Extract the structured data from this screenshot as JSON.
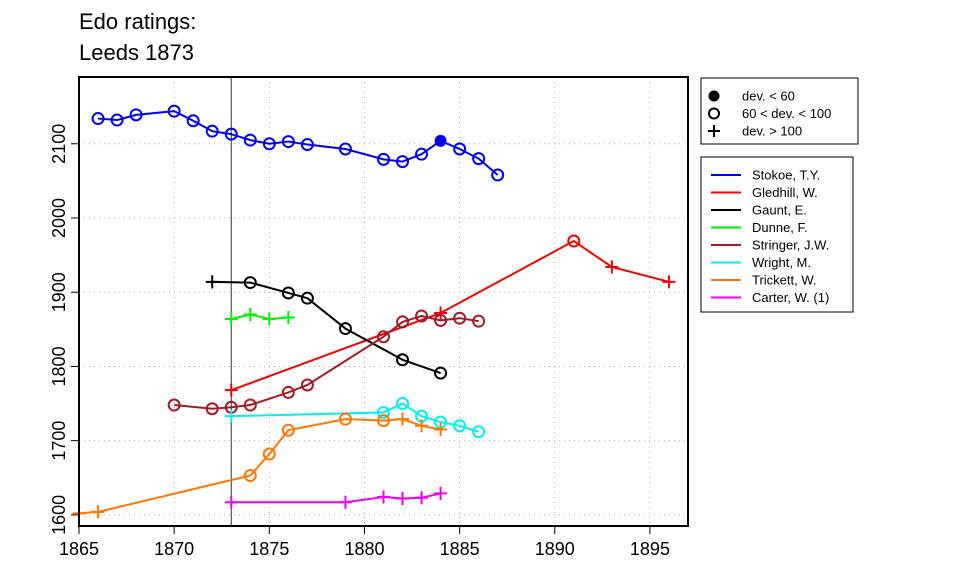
{
  "chart_data": {
    "type": "line",
    "title_lines": [
      "Edo ratings:",
      "Leeds 1873"
    ],
    "xlabel": "",
    "ylabel": "",
    "xlim": [
      1865,
      1897
    ],
    "ylim": [
      1585,
      2190
    ],
    "x_ticks": [
      1865,
      1870,
      1875,
      1880,
      1885,
      1890,
      1895
    ],
    "y_ticks": [
      1600,
      1700,
      1800,
      1900,
      2000,
      2100
    ],
    "grid": true,
    "reference_line_x": 1873,
    "marker_legend": [
      {
        "marker": "filled",
        "label": "dev. < 60"
      },
      {
        "marker": "open",
        "label": "60 < dev. < 100"
      },
      {
        "marker": "plus",
        "label": "dev. > 100"
      }
    ],
    "legend_position": "right",
    "series": [
      {
        "name": "Stokoe, T.Y.",
        "color": "#0000ee",
        "points": [
          [
            1866,
            2134,
            "open"
          ],
          [
            1867,
            2132,
            "open"
          ],
          [
            1868,
            2139,
            "open"
          ],
          [
            1870,
            2144,
            "open"
          ],
          [
            1871,
            2131,
            "open"
          ],
          [
            1872,
            2117,
            "open"
          ],
          [
            1873,
            2113,
            "open"
          ],
          [
            1874,
            2105,
            "open"
          ],
          [
            1875,
            2100,
            "open"
          ],
          [
            1876,
            2103,
            "open"
          ],
          [
            1877,
            2099,
            "open"
          ],
          [
            1879,
            2093,
            "open"
          ],
          [
            1881,
            2079,
            "open"
          ],
          [
            1882,
            2076,
            "open"
          ],
          [
            1883,
            2086,
            "open"
          ],
          [
            1884,
            2104,
            "filled"
          ],
          [
            1885,
            2093,
            "open"
          ],
          [
            1886,
            2080,
            "open"
          ],
          [
            1887,
            2058,
            "open"
          ]
        ]
      },
      {
        "name": "Gledhill, W.",
        "color": "#ee0000",
        "points": [
          [
            1873,
            1768,
            "plus"
          ],
          [
            1884,
            1872,
            "plus"
          ],
          [
            1891,
            1969,
            "open"
          ],
          [
            1893,
            1934,
            "plus"
          ],
          [
            1896,
            1914,
            "plus"
          ]
        ]
      },
      {
        "name": "Gaunt, E.",
        "color": "#000000",
        "points": [
          [
            1872,
            1914,
            "plus"
          ],
          [
            1874,
            1913,
            "open"
          ],
          [
            1876,
            1899,
            "open"
          ],
          [
            1877,
            1892,
            "open"
          ],
          [
            1879,
            1851,
            "open"
          ],
          [
            1882,
            1809,
            "open"
          ],
          [
            1884,
            1791,
            "open"
          ]
        ]
      },
      {
        "name": "Dunne, F.",
        "color": "#00ee00",
        "points": [
          [
            1873,
            1864,
            "plus"
          ],
          [
            1874,
            1870,
            "plus"
          ],
          [
            1875,
            1864,
            "plus"
          ],
          [
            1876,
            1866,
            "plus"
          ]
        ]
      },
      {
        "name": "Stringer, J.W.",
        "color": "#a01c28",
        "points": [
          [
            1870,
            1748,
            "open"
          ],
          [
            1872,
            1743,
            "open"
          ],
          [
            1873,
            1745,
            "open"
          ],
          [
            1874,
            1748,
            "open"
          ],
          [
            1876,
            1765,
            "open"
          ],
          [
            1877,
            1775,
            "open"
          ],
          [
            1881,
            1840,
            "open"
          ],
          [
            1882,
            1860,
            "open"
          ],
          [
            1883,
            1868,
            "open"
          ],
          [
            1884,
            1862,
            "open"
          ],
          [
            1885,
            1865,
            "open"
          ],
          [
            1886,
            1861,
            "open"
          ]
        ]
      },
      {
        "name": "Wright, M.",
        "color": "#00eeee",
        "points": [
          [
            1873,
            1733,
            "plus"
          ],
          [
            1881,
            1738,
            "open"
          ],
          [
            1882,
            1750,
            "open"
          ],
          [
            1883,
            1733,
            "open"
          ],
          [
            1884,
            1725,
            "open"
          ],
          [
            1885,
            1720,
            "open"
          ],
          [
            1886,
            1712,
            "open"
          ]
        ]
      },
      {
        "name": "Trickett, W.",
        "color": "#ff7700",
        "points": [
          [
            1865,
            1602,
            "plus"
          ],
          [
            1866,
            1604,
            "plus"
          ],
          [
            1874,
            1653,
            "open"
          ],
          [
            1875,
            1682,
            "open"
          ],
          [
            1876,
            1714,
            "open"
          ],
          [
            1879,
            1729,
            "open"
          ],
          [
            1881,
            1727,
            "open"
          ],
          [
            1882,
            1729,
            "plus"
          ],
          [
            1883,
            1720,
            "plus"
          ],
          [
            1884,
            1715,
            "plus"
          ]
        ]
      },
      {
        "name": "Carter, W. (1)",
        "color": "#ee00ee",
        "points": [
          [
            1873,
            1617,
            "plus"
          ],
          [
            1879,
            1617,
            "plus"
          ],
          [
            1881,
            1624,
            "plus"
          ],
          [
            1882,
            1622,
            "plus"
          ],
          [
            1883,
            1623,
            "plus"
          ],
          [
            1884,
            1629,
            "plus"
          ]
        ]
      }
    ]
  }
}
